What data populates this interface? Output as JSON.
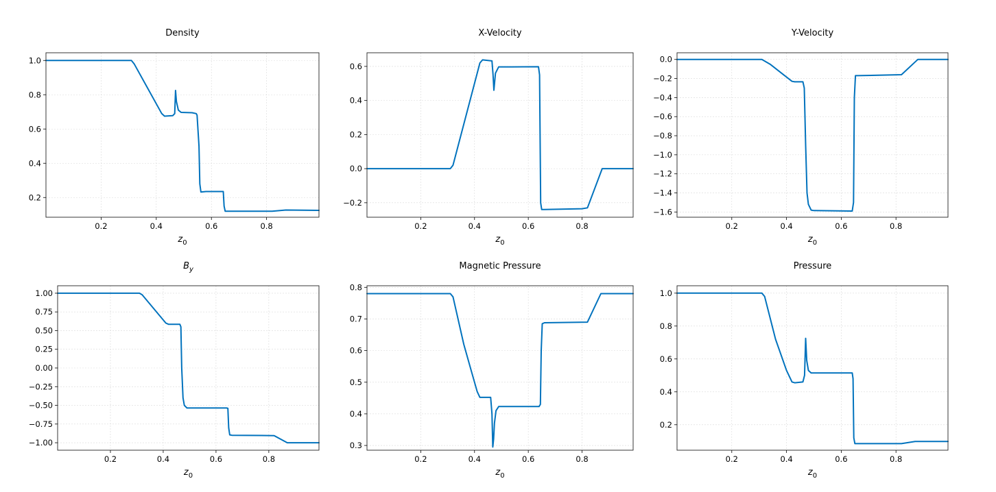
{
  "figure": {
    "accent_color": "#0072BD"
  },
  "chart_data": [
    {
      "type": "line",
      "title": "Density",
      "xlabel": "z0",
      "ylabel": "",
      "xlim": [
        0.0,
        0.99
      ],
      "ylim": [
        0.085,
        1.045
      ],
      "xticks": [
        0.2,
        0.4,
        0.6,
        0.8
      ],
      "xtick_labels": [
        "0.2",
        "0.4",
        "0.6",
        "0.8"
      ],
      "yticks": [
        0.2,
        0.4,
        0.6,
        0.8,
        1.0
      ],
      "ytick_labels": [
        "0.2",
        "0.4",
        "0.6",
        "0.8",
        "1.0"
      ],
      "grid": true,
      "series": [
        {
          "color": "#0072BD",
          "x": [
            0.0,
            0.31,
            0.32,
            0.42,
            0.43,
            0.46,
            0.467,
            0.47,
            0.473,
            0.48,
            0.49,
            0.53,
            0.545,
            0.548,
            0.555,
            0.558,
            0.562,
            0.58,
            0.643,
            0.646,
            0.65,
            0.82,
            0.87,
            0.99
          ],
          "y": [
            1.0,
            1.0,
            0.98,
            0.69,
            0.675,
            0.678,
            0.69,
            0.825,
            0.76,
            0.71,
            0.697,
            0.695,
            0.69,
            0.68,
            0.5,
            0.28,
            0.232,
            0.235,
            0.235,
            0.15,
            0.12,
            0.12,
            0.127,
            0.125
          ]
        }
      ]
    },
    {
      "type": "line",
      "title": "X-Velocity",
      "xlabel": "z0",
      "ylabel": "",
      "xlim": [
        0.0,
        0.99
      ],
      "ylim": [
        -0.285,
        0.68
      ],
      "xticks": [
        0.2,
        0.4,
        0.6,
        0.8
      ],
      "xtick_labels": [
        "0.2",
        "0.4",
        "0.6",
        "0.8"
      ],
      "yticks": [
        -0.2,
        0.0,
        0.2,
        0.4,
        0.6
      ],
      "ytick_labels": [
        "−0.2",
        "0.0",
        "0.2",
        "0.4",
        "0.6"
      ],
      "grid": true,
      "series": [
        {
          "color": "#0072BD",
          "x": [
            0.0,
            0.31,
            0.32,
            0.42,
            0.43,
            0.465,
            0.469,
            0.472,
            0.478,
            0.49,
            0.54,
            0.638,
            0.642,
            0.646,
            0.65,
            0.66,
            0.8,
            0.82,
            0.875,
            0.99
          ],
          "y": [
            0.0,
            0.0,
            0.02,
            0.62,
            0.638,
            0.632,
            0.55,
            0.46,
            0.56,
            0.597,
            0.597,
            0.598,
            0.55,
            -0.2,
            -0.24,
            -0.24,
            -0.235,
            -0.23,
            0.0,
            0.0
          ]
        }
      ]
    },
    {
      "type": "line",
      "title": "Y-Velocity",
      "xlabel": "z0",
      "ylabel": "",
      "xlim": [
        0.0,
        0.99
      ],
      "ylim": [
        -1.655,
        0.07
      ],
      "xticks": [
        0.2,
        0.4,
        0.6,
        0.8
      ],
      "xtick_labels": [
        "0.2",
        "0.4",
        "0.6",
        "0.8"
      ],
      "yticks": [
        -1.6,
        -1.4,
        -1.2,
        -1.0,
        -0.8,
        -0.6,
        -0.4,
        -0.2,
        0.0
      ],
      "ytick_labels": [
        "−1.6",
        "−1.4",
        "−1.2",
        "−1.0",
        "−0.8",
        "−0.6",
        "−0.4",
        "−0.2",
        "0.0"
      ],
      "grid": true,
      "series": [
        {
          "color": "#0072BD",
          "x": [
            0.0,
            0.31,
            0.34,
            0.38,
            0.42,
            0.43,
            0.46,
            0.465,
            0.47,
            0.475,
            0.48,
            0.49,
            0.5,
            0.64,
            0.645,
            0.648,
            0.652,
            0.66,
            0.82,
            0.88,
            0.99
          ],
          "y": [
            0.0,
            0.0,
            -0.05,
            -0.14,
            -0.23,
            -0.235,
            -0.235,
            -0.3,
            -0.9,
            -1.4,
            -1.52,
            -1.58,
            -1.585,
            -1.59,
            -1.5,
            -0.4,
            -0.17,
            -0.17,
            -0.16,
            0.0,
            0.0
          ]
        }
      ]
    },
    {
      "type": "line",
      "title": "By",
      "xlabel": "z0",
      "ylabel": "",
      "xlim": [
        0.0,
        0.99
      ],
      "ylim": [
        -1.1,
        1.1
      ],
      "xticks": [
        0.2,
        0.4,
        0.6,
        0.8
      ],
      "xtick_labels": [
        "0.2",
        "0.4",
        "0.6",
        "0.8"
      ],
      "yticks": [
        -1.0,
        -0.75,
        -0.5,
        -0.25,
        0.0,
        0.25,
        0.5,
        0.75,
        1.0
      ],
      "ytick_labels": [
        "−1.00",
        "−0.75",
        "−0.50",
        "−0.25",
        "0.00",
        "0.25",
        "0.50",
        "0.75",
        "1.00"
      ],
      "grid": true,
      "series": [
        {
          "color": "#0072BD",
          "x": [
            0.0,
            0.31,
            0.32,
            0.41,
            0.42,
            0.463,
            0.467,
            0.47,
            0.475,
            0.48,
            0.49,
            0.64,
            0.645,
            0.648,
            0.652,
            0.66,
            0.82,
            0.87,
            0.99
          ],
          "y": [
            1.0,
            1.0,
            0.98,
            0.6,
            0.585,
            0.585,
            0.55,
            0.0,
            -0.4,
            -0.5,
            -0.535,
            -0.535,
            -0.54,
            -0.8,
            -0.895,
            -0.9,
            -0.905,
            -1.0,
            -1.0
          ]
        }
      ]
    },
    {
      "type": "line",
      "title": "Magnetic Pressure",
      "xlabel": "z0",
      "ylabel": "",
      "xlim": [
        0.0,
        0.99
      ],
      "ylim": [
        0.285,
        0.805
      ],
      "xticks": [
        0.2,
        0.4,
        0.6,
        0.8
      ],
      "xtick_labels": [
        "0.2",
        "0.4",
        "0.6",
        "0.8"
      ],
      "yticks": [
        0.3,
        0.4,
        0.5,
        0.6,
        0.7,
        0.8
      ],
      "ytick_labels": [
        "0.3",
        "0.4",
        "0.5",
        "0.6",
        "0.7",
        "0.8"
      ],
      "grid": true,
      "series": [
        {
          "color": "#0072BD",
          "x": [
            0.0,
            0.31,
            0.32,
            0.36,
            0.39,
            0.41,
            0.42,
            0.46,
            0.465,
            0.468,
            0.471,
            0.474,
            0.48,
            0.49,
            0.64,
            0.645,
            0.648,
            0.652,
            0.66,
            0.82,
            0.87,
            0.99
          ],
          "y": [
            0.78,
            0.78,
            0.77,
            0.62,
            0.53,
            0.47,
            0.452,
            0.452,
            0.4,
            0.295,
            0.32,
            0.37,
            0.41,
            0.423,
            0.423,
            0.43,
            0.6,
            0.685,
            0.688,
            0.69,
            0.78,
            0.78
          ]
        }
      ]
    },
    {
      "type": "line",
      "title": "Pressure",
      "xlabel": "z0",
      "ylabel": "",
      "xlim": [
        0.0,
        0.99
      ],
      "ylim": [
        0.045,
        1.045
      ],
      "xticks": [
        0.2,
        0.4,
        0.6,
        0.8
      ],
      "xtick_labels": [
        "0.2",
        "0.4",
        "0.6",
        "0.8"
      ],
      "yticks": [
        0.2,
        0.4,
        0.6,
        0.8,
        1.0
      ],
      "ytick_labels": [
        "0.2",
        "0.4",
        "0.6",
        "0.8",
        "1.0"
      ],
      "grid": true,
      "series": [
        {
          "color": "#0072BD",
          "x": [
            0.0,
            0.31,
            0.32,
            0.36,
            0.4,
            0.42,
            0.43,
            0.46,
            0.466,
            0.47,
            0.474,
            0.48,
            0.49,
            0.64,
            0.643,
            0.646,
            0.65,
            0.82,
            0.87,
            0.99
          ],
          "y": [
            1.0,
            1.0,
            0.98,
            0.72,
            0.53,
            0.46,
            0.455,
            0.46,
            0.5,
            0.725,
            0.59,
            0.53,
            0.515,
            0.515,
            0.48,
            0.12,
            0.085,
            0.085,
            0.098,
            0.098
          ]
        }
      ]
    }
  ]
}
